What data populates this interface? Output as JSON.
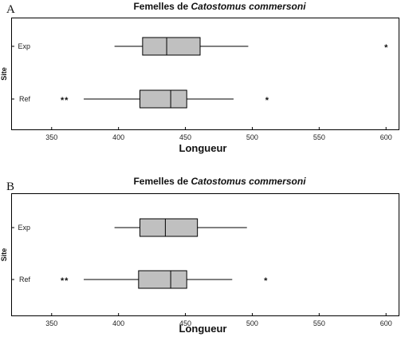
{
  "chart_data": [
    {
      "type": "boxplot",
      "panel_label": "A",
      "title_prefix": "Femelles de ",
      "title_species": "Catostomus commersoni",
      "xlabel": "Longueur",
      "ylabel": "Site",
      "xlim": [
        340,
        610
      ],
      "xticks": [
        350,
        400,
        450,
        500,
        550,
        600
      ],
      "categories": [
        "Exp",
        "Ref"
      ],
      "boxes": [
        {
          "category": "Exp",
          "whisker_low": 397,
          "q1": 418,
          "median": 436,
          "q3": 461,
          "whisker_high": 497,
          "outliers": [
            600
          ]
        },
        {
          "category": "Ref",
          "whisker_low": 374,
          "q1": 416,
          "median": 439,
          "q3": 451,
          "whisker_high": 486,
          "outliers": [
            358,
            361,
            511
          ]
        }
      ],
      "grid": false,
      "legend": "none"
    },
    {
      "type": "boxplot",
      "panel_label": "B",
      "title_prefix": "Femelles de ",
      "title_species": "Catostomus commersoni",
      "xlabel": "Longueur",
      "ylabel": "Site",
      "xlim": [
        340,
        610
      ],
      "xticks": [
        350,
        400,
        450,
        500,
        550,
        600
      ],
      "categories": [
        "Exp",
        "Ref"
      ],
      "boxes": [
        {
          "category": "Exp",
          "whisker_low": 397,
          "q1": 416,
          "median": 435,
          "q3": 459,
          "whisker_high": 496,
          "outliers": []
        },
        {
          "category": "Ref",
          "whisker_low": 374,
          "q1": 415,
          "median": 439,
          "q3": 451,
          "whisker_high": 485,
          "outliers": [
            358,
            361,
            510
          ]
        }
      ],
      "grid": false,
      "legend": "none"
    }
  ],
  "colors": {
    "box_fill": "#c0c0c0",
    "stroke": "#000000",
    "background": "#ffffff"
  }
}
